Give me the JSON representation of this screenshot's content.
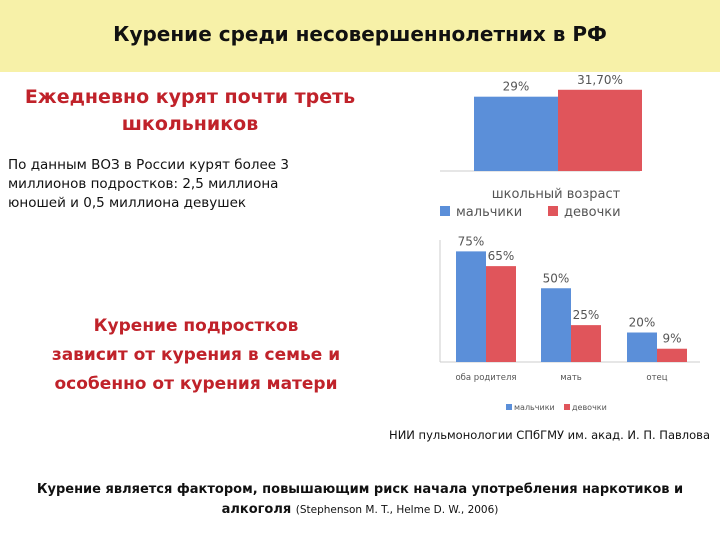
{
  "header": {
    "title": "Курение среди несовершеннолетних в РФ"
  },
  "main": {
    "lead_line1": "Ежедневно курят почти треть",
    "lead_line2": "школьников",
    "para_line1": "По данным ВОЗ в России курят более 3",
    "para_line2": "миллионов подростков: 2,5 миллиона",
    "para_line3": "юношей и 0,5 миллиона девушек",
    "family_line1": "Курение подростков",
    "family_line2": "зависит от курения в семье и",
    "family_line3": "особенно от курения матери",
    "source": "НИИ пульмонологии СПбГМУ им. акад. И. П. Павлова"
  },
  "footer": {
    "line1": "Курение является фактором, повышающим риск начала употребления наркотиков и",
    "line2": "алкоголя",
    "cite": "(Stephenson M. T., Helme D. W., 2006)"
  },
  "colors": {
    "boys": "#5b8fd9",
    "girls": "#e0555b",
    "header_bg": "#f7f1a8",
    "accent": "#c0222a"
  },
  "chart_data": [
    {
      "type": "bar",
      "categories": [
        "школьный возраст"
      ],
      "series": [
        {
          "name": "мальчики",
          "values": [
            29
          ],
          "labels": [
            "29%"
          ]
        },
        {
          "name": "девочки",
          "values": [
            31.7
          ],
          "labels": [
            "31,70%"
          ]
        }
      ],
      "title": "",
      "xlabel": "",
      "ylabel": "",
      "ylim": [
        0,
        32
      ],
      "grid": false,
      "legend": "bottom"
    },
    {
      "type": "bar",
      "categories": [
        "оба родителя",
        "мать",
        "отец"
      ],
      "series": [
        {
          "name": "мальчики",
          "values": [
            75,
            50,
            20
          ],
          "labels": [
            "75%",
            "50%",
            "20%"
          ]
        },
        {
          "name": "девочки",
          "values": [
            65,
            25,
            9
          ],
          "labels": [
            "65%",
            "25%",
            "9%"
          ]
        }
      ],
      "title": "",
      "xlabel": "",
      "ylabel": "",
      "ylim": [
        0,
        80
      ],
      "grid": false,
      "legend": "bottom"
    }
  ]
}
